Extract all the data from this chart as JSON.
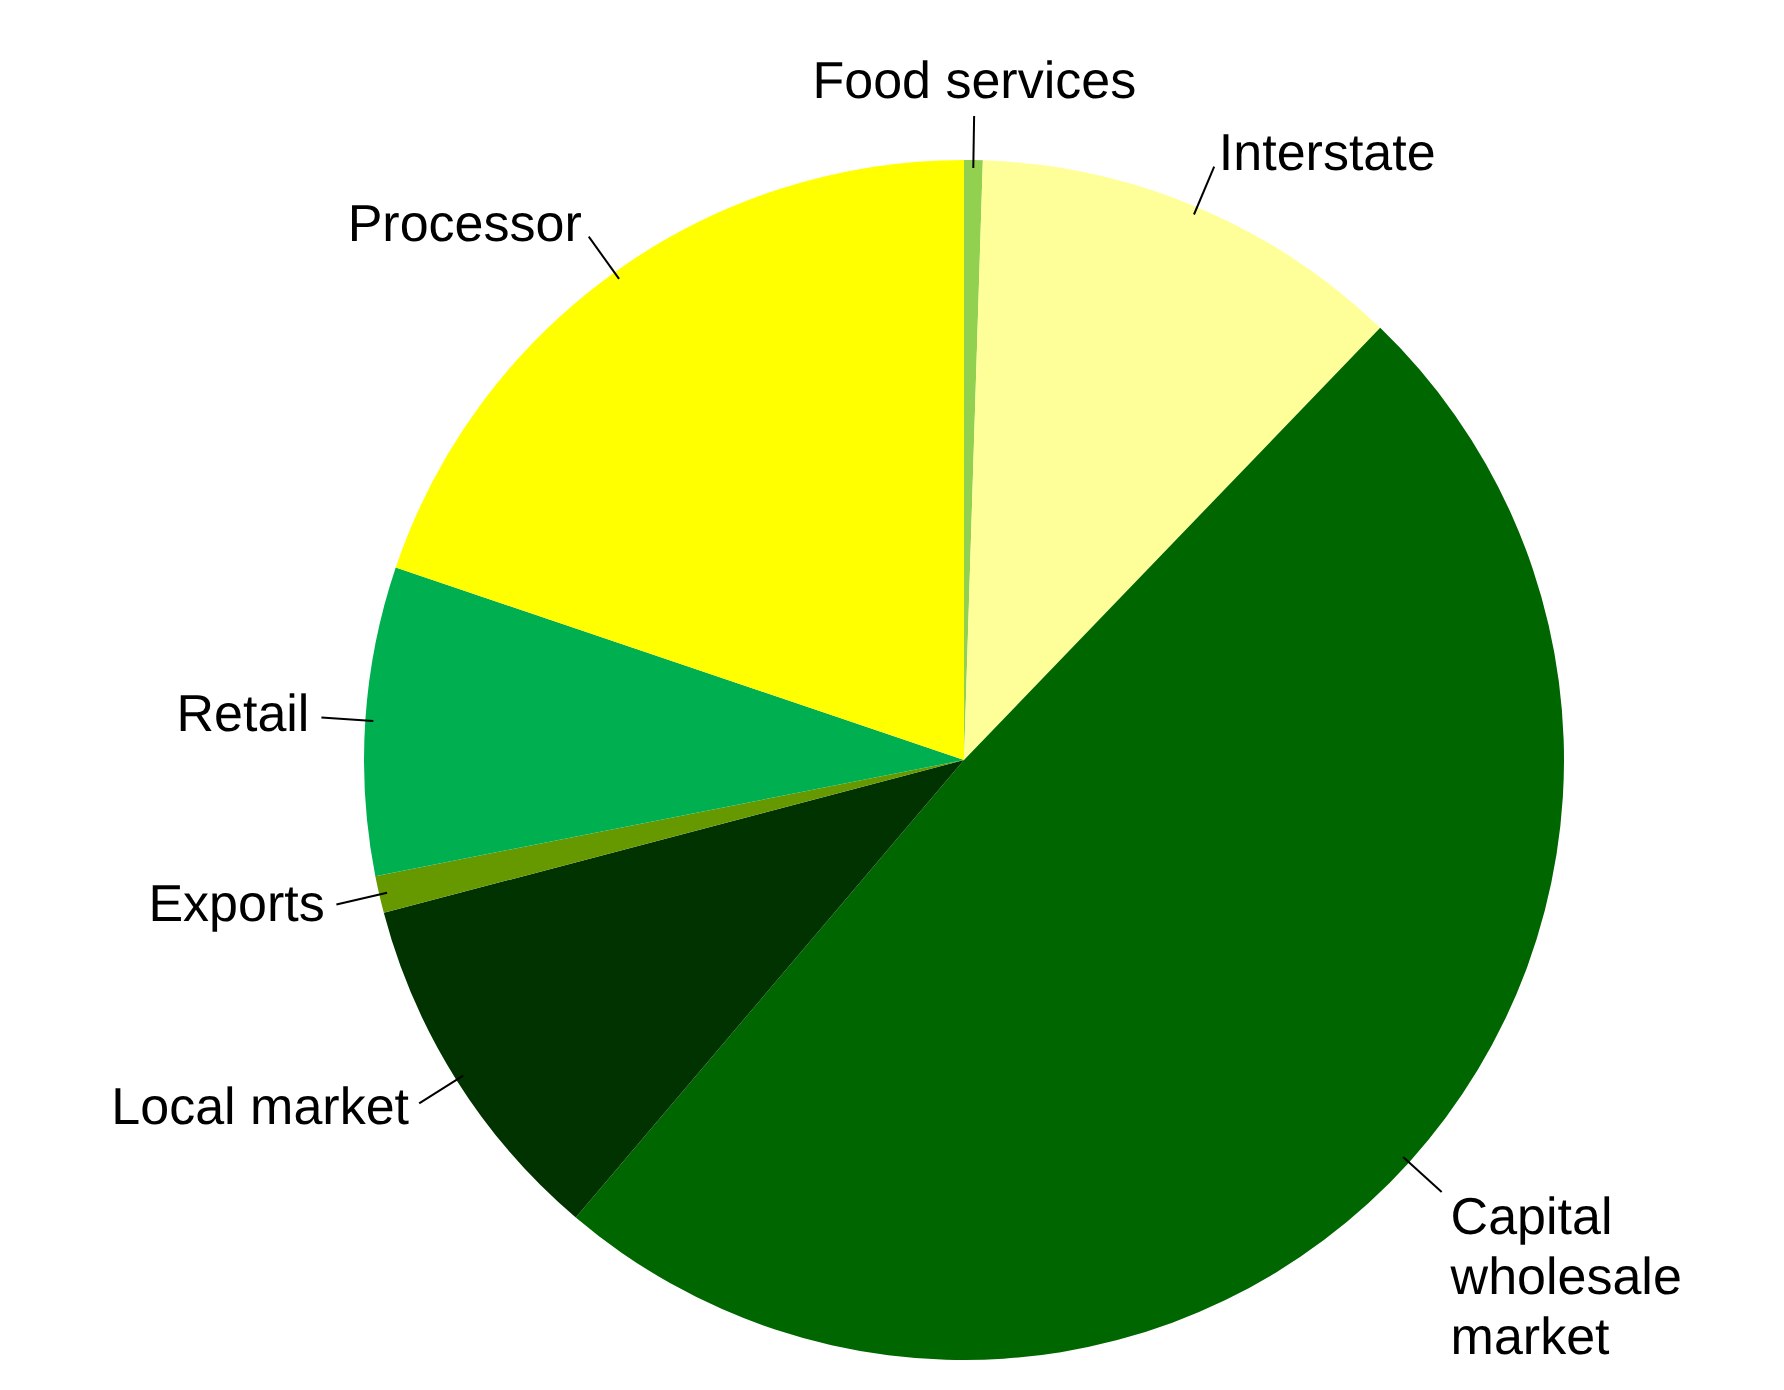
{
  "chart_data": {
    "type": "pie",
    "categories": [
      "Food services",
      "Interstate",
      "Capital wholesale market",
      "Local market",
      "Exports",
      "Retail",
      "Processor"
    ],
    "values": [
      0.5,
      11.7,
      49,
      9.7,
      1,
      8.3,
      19.8
    ],
    "colors": [
      "#92d050",
      "#ffff99",
      "#006600",
      "#003300",
      "#669900",
      "#00b050",
      "#ffff00"
    ],
    "legend": false
  }
}
